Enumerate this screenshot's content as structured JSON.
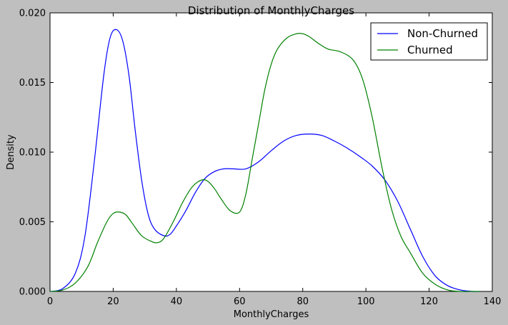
{
  "chart_data": {
    "type": "line",
    "title": "Distribution of MonthlyCharges",
    "xlabel": "MonthlyCharges",
    "ylabel": "Density",
    "xlim": [
      0,
      140
    ],
    "ylim": [
      0,
      0.02
    ],
    "xticks": [
      0,
      20,
      40,
      60,
      80,
      100,
      120,
      140
    ],
    "yticks": [
      "0.000",
      "0.005",
      "0.010",
      "0.015",
      "0.020"
    ],
    "legend_position": "top-right",
    "grid": false,
    "series": [
      {
        "name": "Non-Churned",
        "color": "#0000ff",
        "x": [
          0,
          4,
          8,
          11,
          14,
          17,
          19,
          21,
          23,
          25,
          27,
          29,
          31,
          33,
          36,
          38,
          40,
          43,
          46,
          49,
          52,
          55,
          58,
          62,
          66,
          70,
          74,
          78,
          82,
          86,
          90,
          94,
          98,
          102,
          106,
          110,
          114,
          118,
          122,
          126,
          130,
          134,
          136
        ],
        "y": [
          0.0,
          0.0002,
          0.0013,
          0.0039,
          0.0093,
          0.0155,
          0.0182,
          0.0188,
          0.018,
          0.0155,
          0.0115,
          0.008,
          0.0056,
          0.0045,
          0.004,
          0.0041,
          0.0047,
          0.0058,
          0.0071,
          0.0081,
          0.0086,
          0.0088,
          0.0088,
          0.0088,
          0.0093,
          0.0101,
          0.0108,
          0.0112,
          0.0113,
          0.0112,
          0.0108,
          0.0103,
          0.0097,
          0.009,
          0.008,
          0.0065,
          0.0045,
          0.0025,
          0.0011,
          0.0004,
          0.0001,
          0.0,
          0.0
        ]
      },
      {
        "name": "Churned",
        "color": "#008000",
        "x": [
          0,
          4,
          8,
          12,
          15,
          18,
          20,
          22,
          24,
          26,
          29,
          32,
          34,
          36,
          39,
          42,
          45,
          48,
          50,
          52,
          54,
          57,
          60,
          62,
          64,
          66,
          68,
          70,
          72,
          75,
          78,
          80,
          82,
          85,
          88,
          92,
          96,
          99,
          102,
          105,
          108,
          111,
          114,
          118,
          122,
          126,
          130,
          134,
          136
        ],
        "y": [
          0.0,
          0.0001,
          0.0006,
          0.0018,
          0.0035,
          0.005,
          0.0056,
          0.0057,
          0.0055,
          0.0049,
          0.004,
          0.0036,
          0.0035,
          0.0038,
          0.005,
          0.0064,
          0.0075,
          0.008,
          0.0079,
          0.0074,
          0.0067,
          0.0058,
          0.0057,
          0.007,
          0.0095,
          0.012,
          0.0145,
          0.0163,
          0.0174,
          0.0182,
          0.0185,
          0.0185,
          0.0183,
          0.0178,
          0.0174,
          0.0172,
          0.0166,
          0.0152,
          0.0125,
          0.009,
          0.006,
          0.004,
          0.0028,
          0.0013,
          0.0005,
          0.0001,
          0.0,
          0.0,
          0.0
        ]
      }
    ]
  }
}
